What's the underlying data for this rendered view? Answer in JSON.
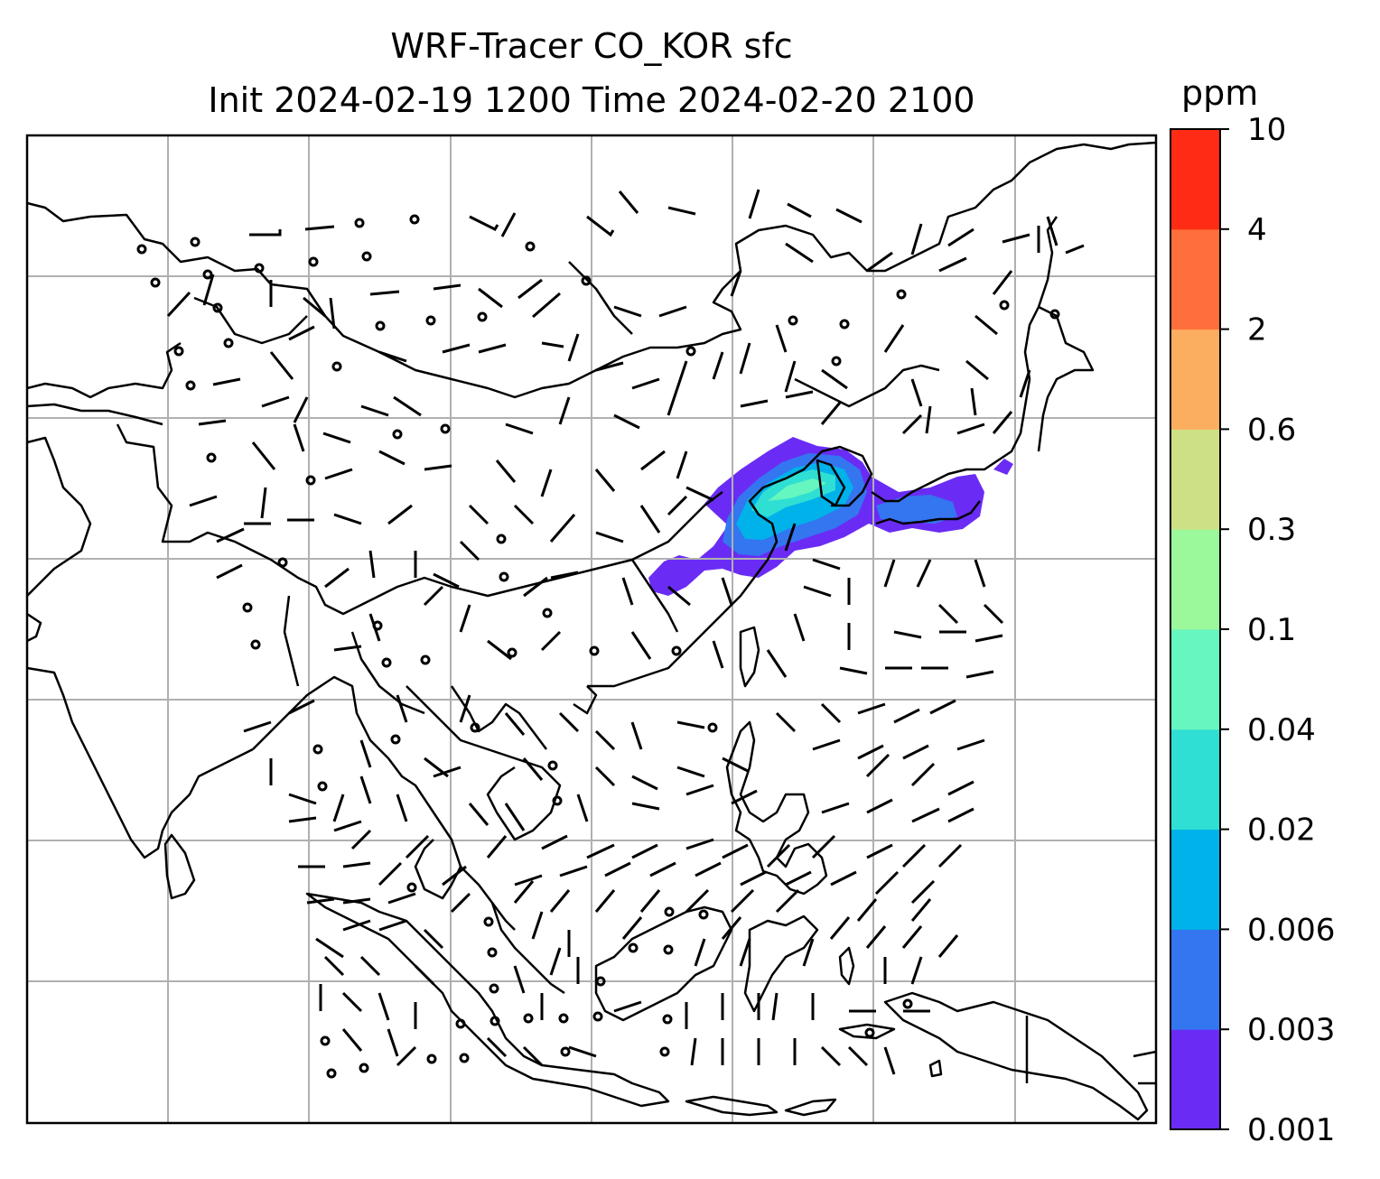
{
  "figure": {
    "title_line1": "WRF-Tracer CO_KOR sfc",
    "title_line2": "Init 2024-02-19 1200 Time 2024-02-20 2100"
  },
  "colorbar": {
    "unit": "ppm",
    "levels": [
      "0.001",
      "0.003",
      "0.006",
      "0.02",
      "0.04",
      "0.1",
      "0.3",
      "0.6",
      "2",
      "4",
      "10"
    ],
    "colors": [
      "#6a2cf5",
      "#3475f0",
      "#00b2ea",
      "#30dfd3",
      "#66f6bf",
      "#9bf89b",
      "#cde085",
      "#fcae60",
      "#ff6f3b",
      "#ff2b15"
    ]
  },
  "map": {
    "region": "East / Southeast Asia",
    "gridline_color": "#b0b0b0",
    "coastline_color": "#000000",
    "field": "CO tracer surface concentration",
    "plume_region": "Korean Peninsula, Yellow Sea, East China, Japan"
  }
}
